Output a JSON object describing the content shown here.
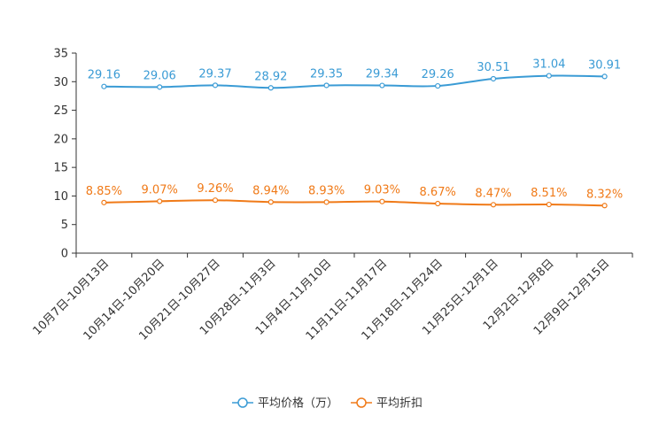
{
  "chart_data": {
    "type": "line",
    "title": "",
    "xlabel": "",
    "ylabel": "",
    "ylim": [
      0,
      35
    ],
    "yticks": [
      0,
      5,
      10,
      15,
      20,
      25,
      30,
      35
    ],
    "grid": false,
    "legend_position": "bottom-center",
    "categories": [
      "10月7日-10月13日",
      "10月14日-10月20日",
      "10月21日-10月27日",
      "10月28日-11月3日",
      "11月4日-11月10日",
      "11月11日-11月17日",
      "11月18日-11月24日",
      "11月25日-12月1日",
      "12月2日-12月8日",
      "12月9日-12月15日"
    ],
    "series": [
      {
        "name": "平均价格（万）",
        "color": "#3a9bd5",
        "values": [
          29.16,
          29.06,
          29.37,
          28.92,
          29.35,
          29.34,
          29.26,
          30.51,
          31.04,
          30.91
        ],
        "labels": [
          "29.16",
          "29.06",
          "29.37",
          "28.92",
          "29.35",
          "29.34",
          "29.26",
          "30.51",
          "31.04",
          "30.91"
        ]
      },
      {
        "name": "平均折扣",
        "color": "#f07a18",
        "values": [
          8.85,
          9.07,
          9.26,
          8.94,
          8.93,
          9.03,
          8.67,
          8.47,
          8.51,
          8.32
        ],
        "labels": [
          "8.85%",
          "9.07%",
          "9.26%",
          "8.94%",
          "8.93%",
          "9.03%",
          "8.67%",
          "8.47%",
          "8.51%",
          "8.32%"
        ]
      }
    ]
  }
}
